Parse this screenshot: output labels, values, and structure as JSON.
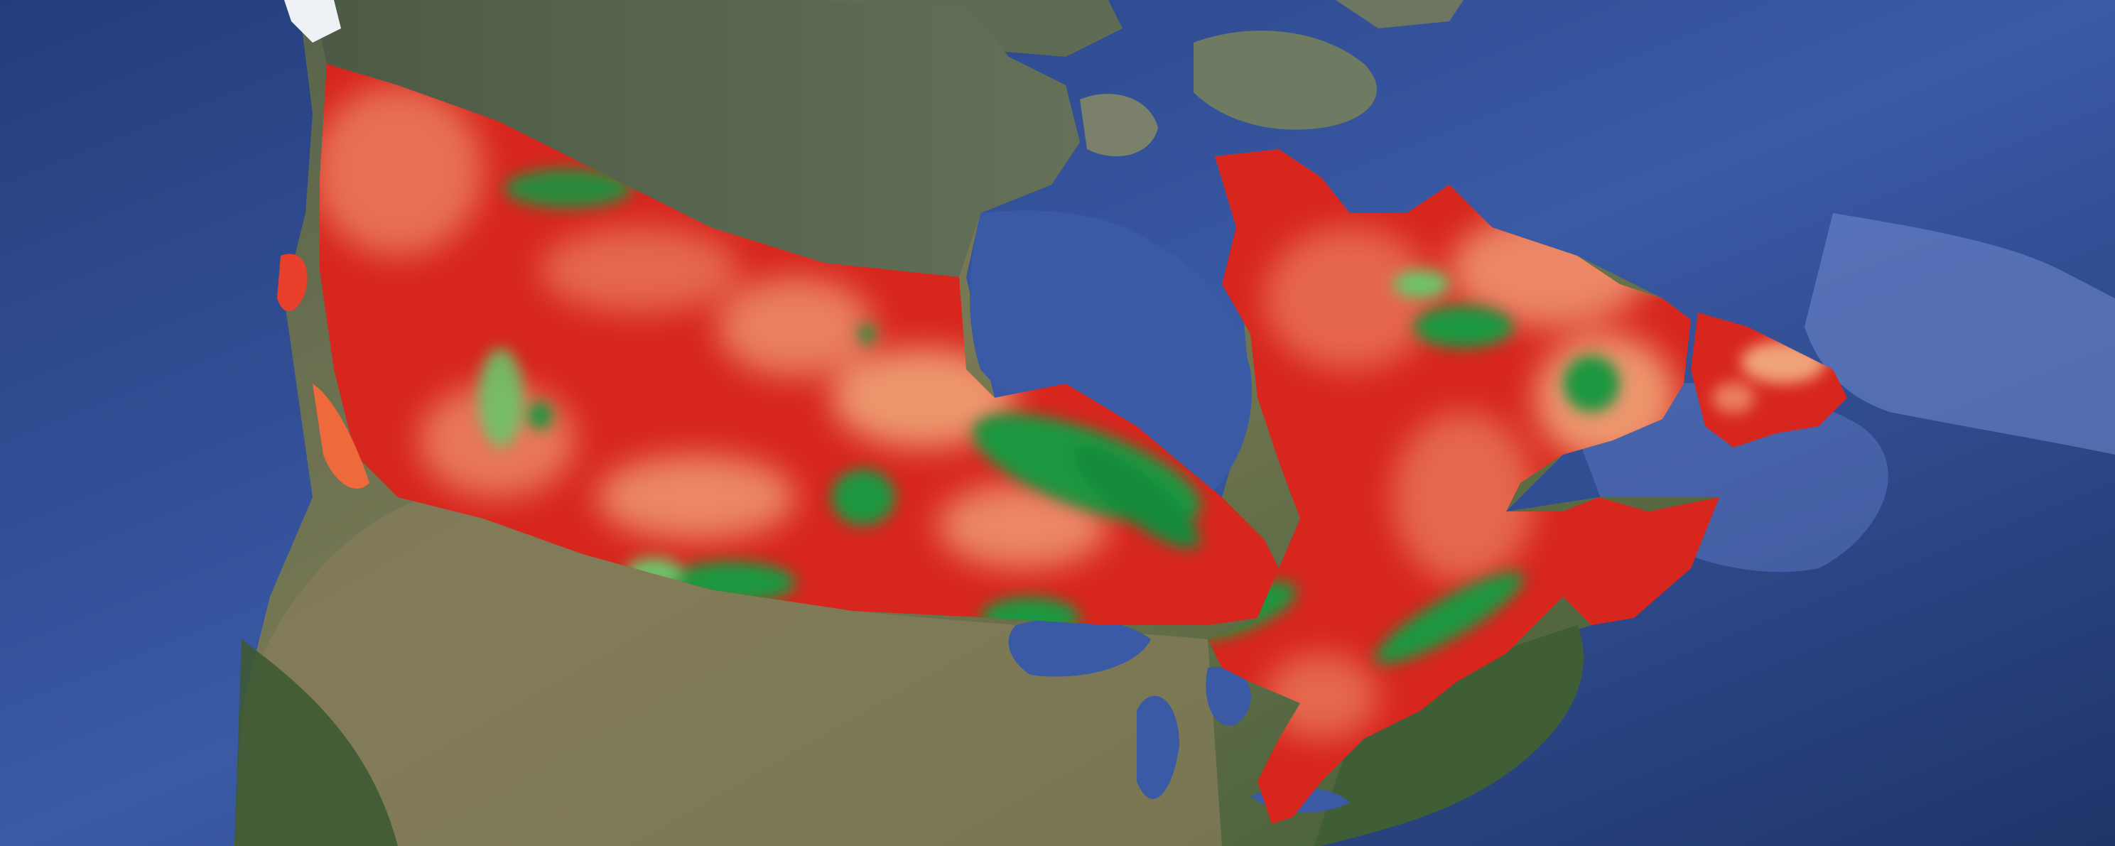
{
  "map": {
    "basemap": "satellite-imagery",
    "overlay": "heatmap-raster",
    "region": "Canada",
    "colors": {
      "ocean_deep": "#1f3468",
      "ocean": "#3a5aa6",
      "shelf": "#6d86c9",
      "land_forest": "#3c5a35",
      "land_dry": "#8a8560",
      "tundra": "#5b6a52",
      "ice": "#eef2f6",
      "heat_low": "#d7261e",
      "heat_mid": "#fff2b0",
      "heat_high": "#1a9641"
    },
    "legend": null
  }
}
